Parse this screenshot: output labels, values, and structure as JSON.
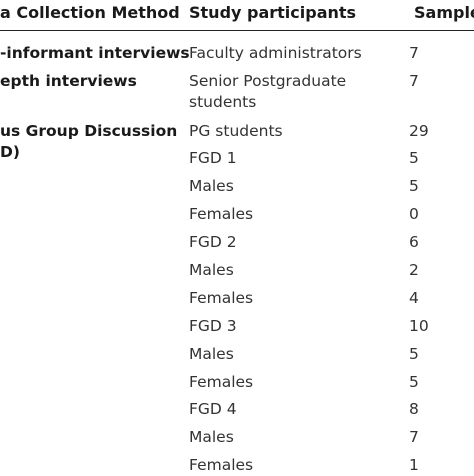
{
  "table": {
    "headers": {
      "method": "a Collection Method",
      "participants": "Study participants",
      "sample": "Sample"
    },
    "methods": [
      "-informant interviews",
      "epth interviews",
      "us Group Discussion",
      "D)"
    ],
    "rows": [
      {
        "participant": "Faculty administrators",
        "sample": "7"
      },
      {
        "participant": "Senior Postgraduate",
        "participant_line2": "students",
        "sample": "7"
      },
      {
        "participant": "PG students",
        "sample": "29"
      },
      {
        "participant": "FGD 1",
        "sample": "5"
      },
      {
        "participant": "Males",
        "sample": "5"
      },
      {
        "participant": "Females",
        "sample": "0"
      },
      {
        "participant": "FGD 2",
        "sample": "6"
      },
      {
        "participant": "Males",
        "sample": "2"
      },
      {
        "participant": "Females",
        "sample": "4"
      },
      {
        "participant": "FGD 3",
        "sample": "10"
      },
      {
        "participant": "Males",
        "sample": "5"
      },
      {
        "participant": "Females",
        "sample": "5"
      },
      {
        "participant": "FGD 4",
        "sample": "8"
      },
      {
        "participant": "Males",
        "sample": "7"
      },
      {
        "participant": "Females",
        "sample": "1"
      }
    ]
  }
}
